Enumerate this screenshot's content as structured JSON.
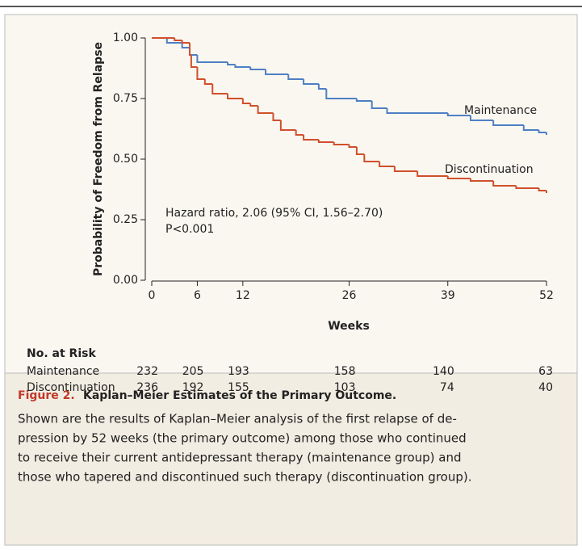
{
  "chart_data": {
    "type": "step",
    "x_label": "Weeks",
    "y_label": "Probability of Freedom from Relapse",
    "xlim": [
      0,
      52
    ],
    "ylim": [
      0,
      1
    ],
    "xticks": [
      0,
      6,
      12,
      26,
      39,
      52
    ],
    "yticks": [
      {
        "value": 0,
        "label": "0.00"
      },
      {
        "value": 0.25,
        "label": "0.25"
      },
      {
        "value": 0.5,
        "label": "0.50"
      },
      {
        "value": 0.75,
        "label": "0.75"
      },
      {
        "value": 1,
        "label": "1.00"
      }
    ],
    "series": [
      {
        "name": "Maintenance",
        "color": "#4f7fc4",
        "x": [
          0,
          2,
          4,
          5,
          6,
          10,
          11,
          13,
          15,
          18,
          20,
          22,
          23,
          27,
          29,
          31,
          39,
          42,
          45,
          49,
          51,
          52
        ],
        "values": [
          1,
          0.98,
          0.96,
          0.93,
          0.9,
          0.89,
          0.88,
          0.87,
          0.85,
          0.83,
          0.81,
          0.79,
          0.75,
          0.74,
          0.71,
          0.69,
          0.68,
          0.66,
          0.64,
          0.62,
          0.61,
          0.6
        ]
      },
      {
        "name": "Discontinuation",
        "color": "#d0502c",
        "x": [
          0,
          3,
          4,
          5,
          5.2,
          6,
          7,
          8,
          10,
          12,
          13,
          14,
          16,
          17,
          19,
          20,
          22,
          24,
          26,
          27,
          28,
          30,
          32,
          35,
          39,
          42,
          45,
          48,
          51,
          52
        ],
        "values": [
          1,
          0.99,
          0.98,
          0.93,
          0.88,
          0.83,
          0.81,
          0.77,
          0.75,
          0.73,
          0.72,
          0.69,
          0.66,
          0.62,
          0.6,
          0.58,
          0.57,
          0.56,
          0.55,
          0.52,
          0.49,
          0.47,
          0.45,
          0.43,
          0.42,
          0.41,
          0.39,
          0.38,
          0.37,
          0.36
        ]
      }
    ],
    "annotations": [
      "Hazard ratio, 2.06 (95% CI, 1.56–2.70)",
      "P<0.001"
    ],
    "risk_table": {
      "title": "No. at Risk",
      "rows": [
        {
          "label": "Maintenance",
          "values": [
            232,
            205,
            193,
            158,
            140,
            63
          ]
        },
        {
          "label": "Discontinuation",
          "values": [
            236,
            192,
            155,
            103,
            74,
            40
          ]
        }
      ]
    },
    "caption": {
      "figure": "Figure 2.",
      "title": "Kaplan–Meier Estimates of the Primary Outcome.",
      "lines": [
        "Shown are the results of Kaplan–Meier analysis of the first relapse of de-",
        "pression by 52 weeks (the primary outcome) among those who continued",
        "to receive their current antidepressant therapy (maintenance group) and",
        "those who tapered and discontinued such therapy (discontinuation group)."
      ]
    }
  }
}
